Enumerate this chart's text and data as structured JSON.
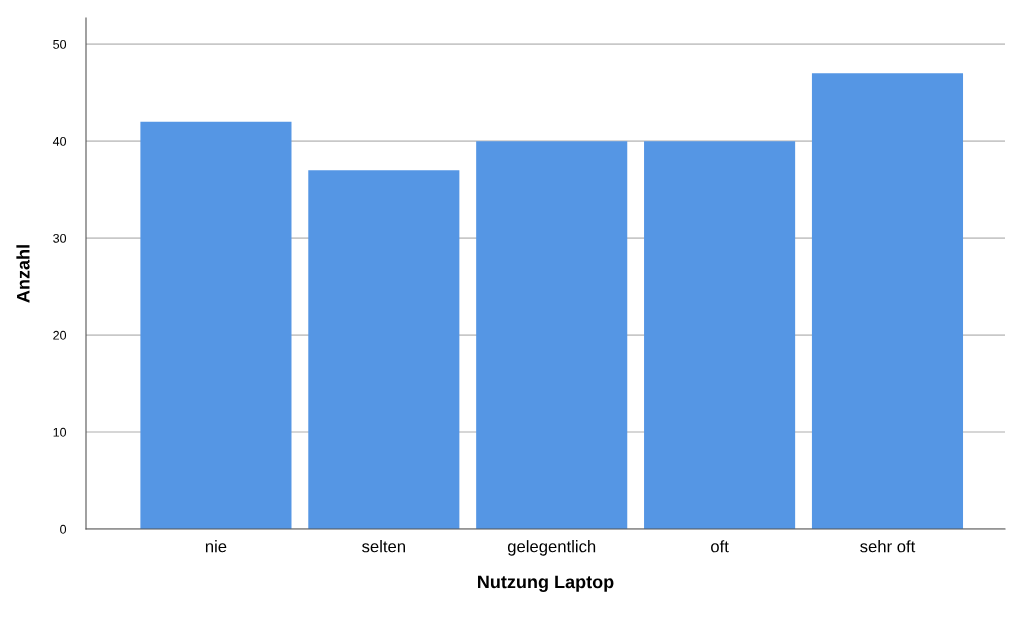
{
  "chart_data": {
    "type": "bar",
    "xlabel": "Nutzung Laptop",
    "ylabel": "Anzahl",
    "categories": [
      "nie",
      "selten",
      "gelegentlich",
      "oft",
      "sehr oft"
    ],
    "values": [
      42,
      37,
      40,
      40,
      47
    ],
    "color": "#5596e4",
    "ylim": [
      0,
      52.7
    ],
    "yticks": [
      0,
      10,
      20,
      30,
      40,
      50
    ],
    "grid": "y",
    "legend": false
  }
}
